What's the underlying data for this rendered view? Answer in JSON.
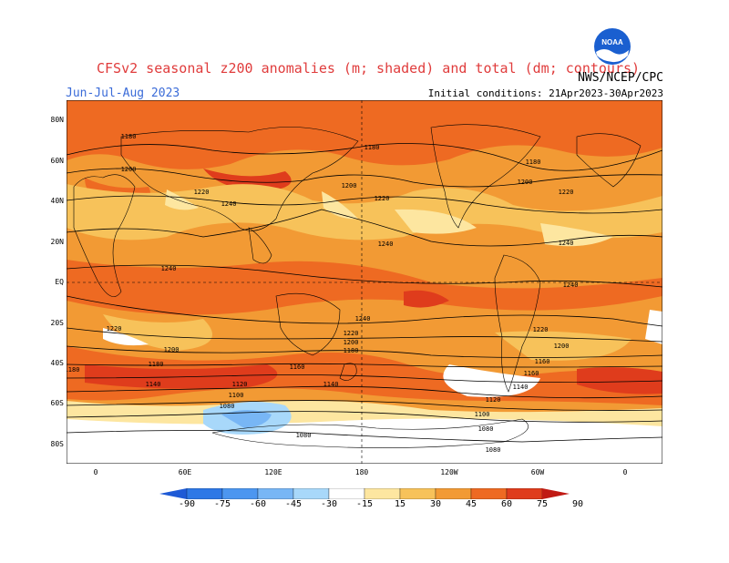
{
  "header": {
    "title": "CFSv2 seasonal z200 anomalies (m; shaded) and total (dm; contours)",
    "agency": "NWS/NCEP/CPC",
    "season": "Jun-Jul-Aug 2023",
    "initial_conditions": "Initial conditions: 21Apr2023-30Apr2023",
    "logo_text": "NOAA",
    "logo_icon": "noaa-logo-icon"
  },
  "axes": {
    "y_ticks": [
      "80N",
      "60N",
      "40N",
      "20N",
      "EQ",
      "20S",
      "40S",
      "60S",
      "80S"
    ],
    "x_ticks": [
      "0",
      "60E",
      "120E",
      "180",
      "120W",
      "60W",
      "0"
    ]
  },
  "contour_labels": [
    "1180",
    "1200",
    "1220",
    "1240",
    "1240",
    "1180",
    "1200",
    "1220",
    "1240",
    "1180",
    "1200",
    "1220",
    "1240",
    "1240",
    "1240",
    "1220",
    "1200",
    "1180",
    "1140",
    "1120",
    "1100",
    "1080",
    "1080",
    "1220",
    "1200",
    "1180",
    "1160",
    "1140",
    "1120",
    "1100",
    "1080",
    "1080",
    "1160",
    "1140",
    "1160",
    "1220",
    "1200",
    "1180"
  ],
  "colorbar": {
    "labels": [
      "-90",
      "-75",
      "-60",
      "-45",
      "-30",
      "-15",
      "15",
      "30",
      "45",
      "60",
      "75",
      "90"
    ],
    "colors": [
      "#1e5ad6",
      "#2e78e6",
      "#4c96f0",
      "#78b6f5",
      "#a8d8fa",
      "#ffffff",
      "#fde6a0",
      "#f7c25a",
      "#f29a34",
      "#ee6a22",
      "#df3c1c",
      "#c01a14"
    ]
  }
}
